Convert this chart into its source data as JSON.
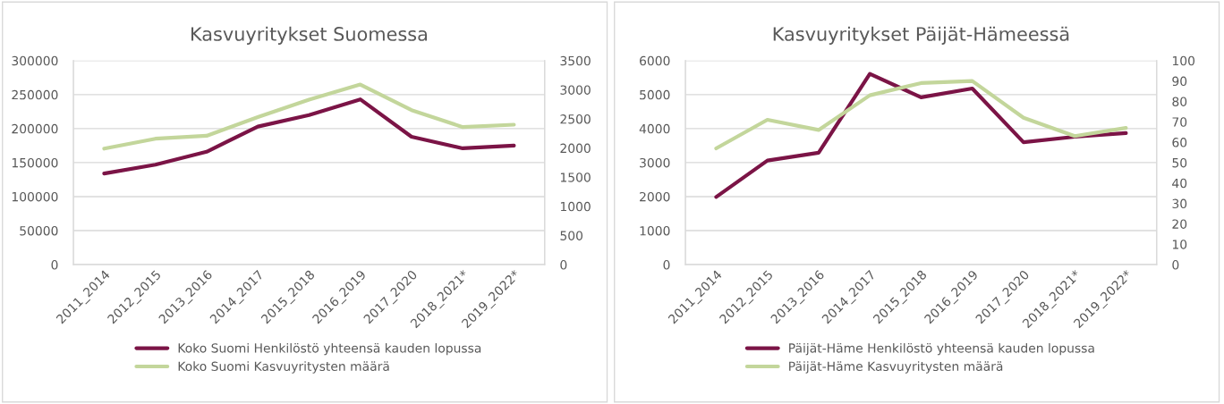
{
  "chart_data": [
    {
      "type": "line",
      "title": "Kasvuyritykset Suomessa",
      "categories": [
        "2011_2014",
        "2012_2015",
        "2013_2016",
        "2014_2017",
        "2015_2018",
        "2016_2019",
        "2017_2020",
        "2018_2021*",
        "2019_2022*"
      ],
      "series": [
        {
          "name": "Koko Suomi Henkilöstö yhteensä kauden lopussa",
          "color": "#7b1446",
          "values": [
            134000,
            147000,
            166000,
            203000,
            220000,
            243000,
            188000,
            171000,
            175000
          ]
        },
        {
          "name": "Koko Suomi Kasvuyritysten määrä",
          "color": "#c3d69b",
          "axis": "y2",
          "values": [
            1990,
            2160,
            2210,
            2530,
            2830,
            3090,
            2650,
            2360,
            2400
          ]
        }
      ],
      "ylim": [
        0,
        300000
      ],
      "yticks": [
        0,
        50000,
        100000,
        150000,
        200000,
        250000,
        300000
      ],
      "y2lim": [
        0,
        3500
      ],
      "y2ticks": [
        0,
        500,
        1000,
        1500,
        2000,
        2500,
        3000,
        3500
      ],
      "grid": "y",
      "legend": "bottom"
    },
    {
      "type": "line",
      "title": "Kasvuyritykset Päijät-Hämeessä",
      "categories": [
        "2011_2014",
        "2012_2015",
        "2013_2016",
        "2014_2017",
        "2015_2018",
        "2016_2019",
        "2017_2020",
        "2018_2021*",
        "2019_2022*"
      ],
      "series": [
        {
          "name": "Päijät-Häme Henkilöstö yhteensä kauden lopussa",
          "color": "#7b1446",
          "values": [
            1990,
            3060,
            3290,
            5610,
            4920,
            5180,
            3600,
            3760,
            3870
          ]
        },
        {
          "name": "Päijät-Häme Kasvuyritysten määrä",
          "color": "#c3d69b",
          "axis": "y2",
          "values": [
            57,
            71,
            66,
            83,
            89,
            90,
            72,
            63,
            67
          ]
        }
      ],
      "ylim": [
        0,
        6000
      ],
      "yticks": [
        0,
        1000,
        2000,
        3000,
        4000,
        5000,
        6000
      ],
      "y2lim": [
        0,
        100
      ],
      "y2ticks": [
        0,
        10,
        20,
        30,
        40,
        50,
        60,
        70,
        80,
        90,
        100
      ],
      "grid": "y",
      "legend": "bottom"
    }
  ]
}
